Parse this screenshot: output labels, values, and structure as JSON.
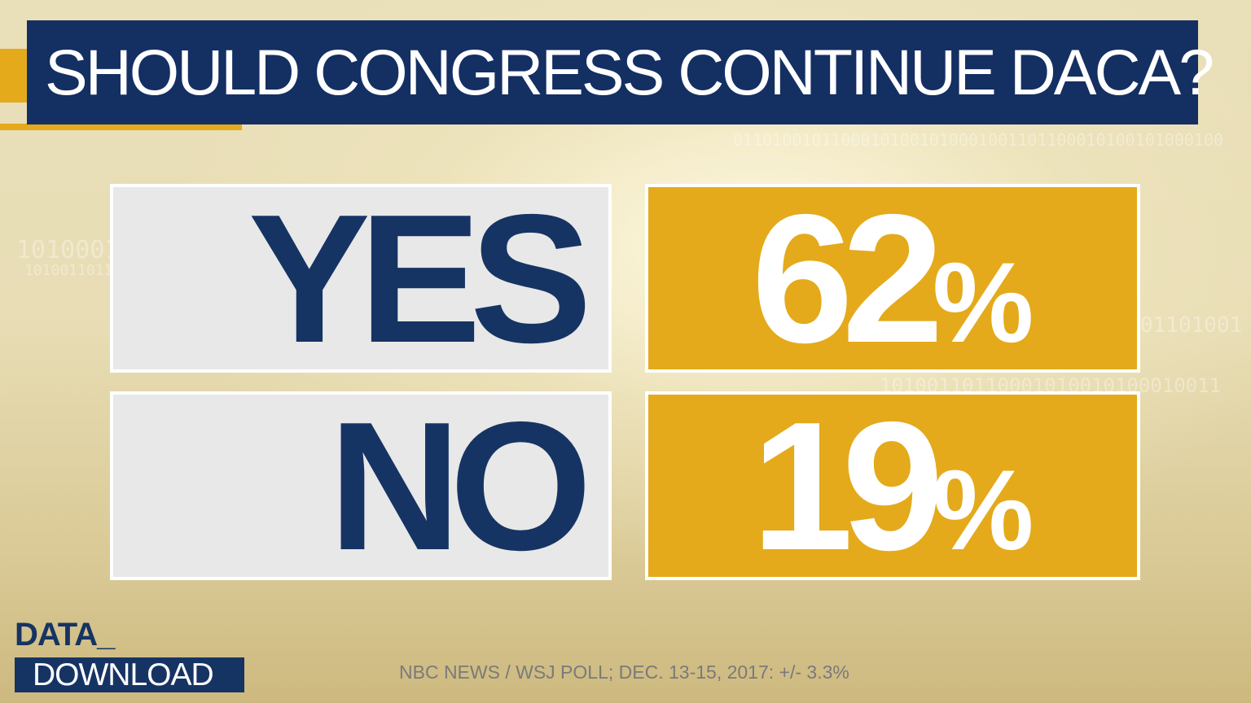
{
  "title": "SHOULD CONGRESS CONTINUE DACA?",
  "chart_data": {
    "type": "table",
    "title": "SHOULD CONGRESS CONTINUE DACA?",
    "rows": [
      {
        "label": "YES",
        "value": 62,
        "value_text": "62",
        "unit": "%"
      },
      {
        "label": "NO",
        "value": 19,
        "value_text": "19",
        "unit": "%"
      }
    ]
  },
  "logo": {
    "line1": "DATA_",
    "line2": "DOWNLOAD"
  },
  "source": "NBC NEWS / WSJ POLL; DEC. 13-15, 2017: +/- 3.3%",
  "colors": {
    "navy": "#142f62",
    "gold": "#e4aa1b",
    "label_bg": "#e8e8e8"
  }
}
